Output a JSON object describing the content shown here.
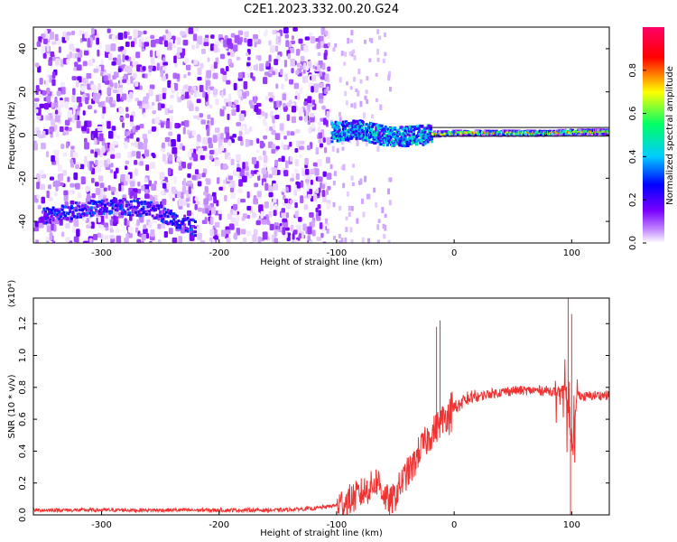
{
  "figure": {
    "title": "C2E1.2023.332.00.20.G24"
  },
  "chart_data": [
    {
      "type": "heatmap",
      "xlabel": "Height of straight line (km)",
      "ylabel": "Frequency (Hz)",
      "xlim": [
        -358,
        132
      ],
      "ylim": [
        -50,
        50
      ],
      "xticks": [
        -300,
        -200,
        -100,
        0,
        100
      ],
      "yticks": [
        -40,
        -20,
        0,
        20,
        40
      ],
      "colorbar": {
        "label": "Normalized spectral amplitude",
        "range": [
          0.0,
          1.0
        ],
        "ticks": [
          0.0,
          0.2,
          0.4,
          0.6,
          0.8
        ],
        "colormap": [
          "#ffffff",
          "#c48cff",
          "#7a00ff",
          "#0000ff",
          "#00ccff",
          "#00ff66",
          "#ffff00",
          "#ff0000",
          "#ff0066"
        ]
      },
      "features": [
        {
          "name": "broadband noise",
          "x_range": [
            -358,
            -108
          ],
          "y_range": [
            -50,
            50
          ],
          "amplitude": 0.2
        },
        {
          "name": "low-frequency band",
          "x": [
            -350,
            -320,
            -290,
            -260,
            -240,
            -220
          ],
          "y": [
            -37,
            -34,
            -32,
            -34,
            -38,
            -43
          ],
          "amplitude": 0.3
        },
        {
          "name": "carrier line",
          "x": [
            -105,
            -80,
            -60,
            -40,
            -20,
            0,
            40,
            80,
            100,
            132
          ],
          "y": [
            2,
            3,
            0,
            0,
            1,
            1.5,
            1.5,
            1.5,
            2,
            2
          ],
          "amplitude": 0.85
        }
      ]
    },
    {
      "type": "line",
      "xlabel": "Height of straight line (km)",
      "ylabel": "SNR (10 * v/v)",
      "yscale_label": "(x10⁴)",
      "xlim": [
        -358,
        132
      ],
      "ylim": [
        0,
        1.36
      ],
      "xticks": [
        -300,
        -200,
        -100,
        0,
        100
      ],
      "yticks": [
        0.0,
        0.2,
        0.4,
        0.6,
        0.8,
        1.0,
        1.2
      ],
      "color": "#ee3333",
      "series": [
        {
          "x": [
            -358,
            -300,
            -250,
            -200,
            -150,
            -120,
            -100,
            -90,
            -80,
            -70,
            -65,
            -60,
            -55,
            -50,
            -45,
            -40,
            -35,
            -30,
            -25,
            -20,
            -15,
            -10,
            -5,
            0,
            10,
            20,
            30,
            40,
            50,
            60,
            70,
            80,
            90,
            95,
            100,
            105,
            110,
            120,
            132
          ],
          "y": [
            0.03,
            0.03,
            0.03,
            0.03,
            0.03,
            0.04,
            0.06,
            0.09,
            0.13,
            0.18,
            0.22,
            0.13,
            0.07,
            0.12,
            0.2,
            0.26,
            0.3,
            0.4,
            0.45,
            0.5,
            0.55,
            0.6,
            0.63,
            0.67,
            0.72,
            0.74,
            0.76,
            0.77,
            0.78,
            0.78,
            0.78,
            0.78,
            0.77,
            0.8,
            0.4,
            0.76,
            0.74,
            0.75,
            0.75
          ]
        }
      ],
      "peaks": [
        {
          "x": -12,
          "y": 1.22
        },
        {
          "x": -15,
          "y": 1.18
        },
        {
          "x": 97,
          "y": 1.36
        },
        {
          "x": 100,
          "y": 1.26
        },
        {
          "x": 99,
          "y": 0.0
        }
      ]
    }
  ]
}
